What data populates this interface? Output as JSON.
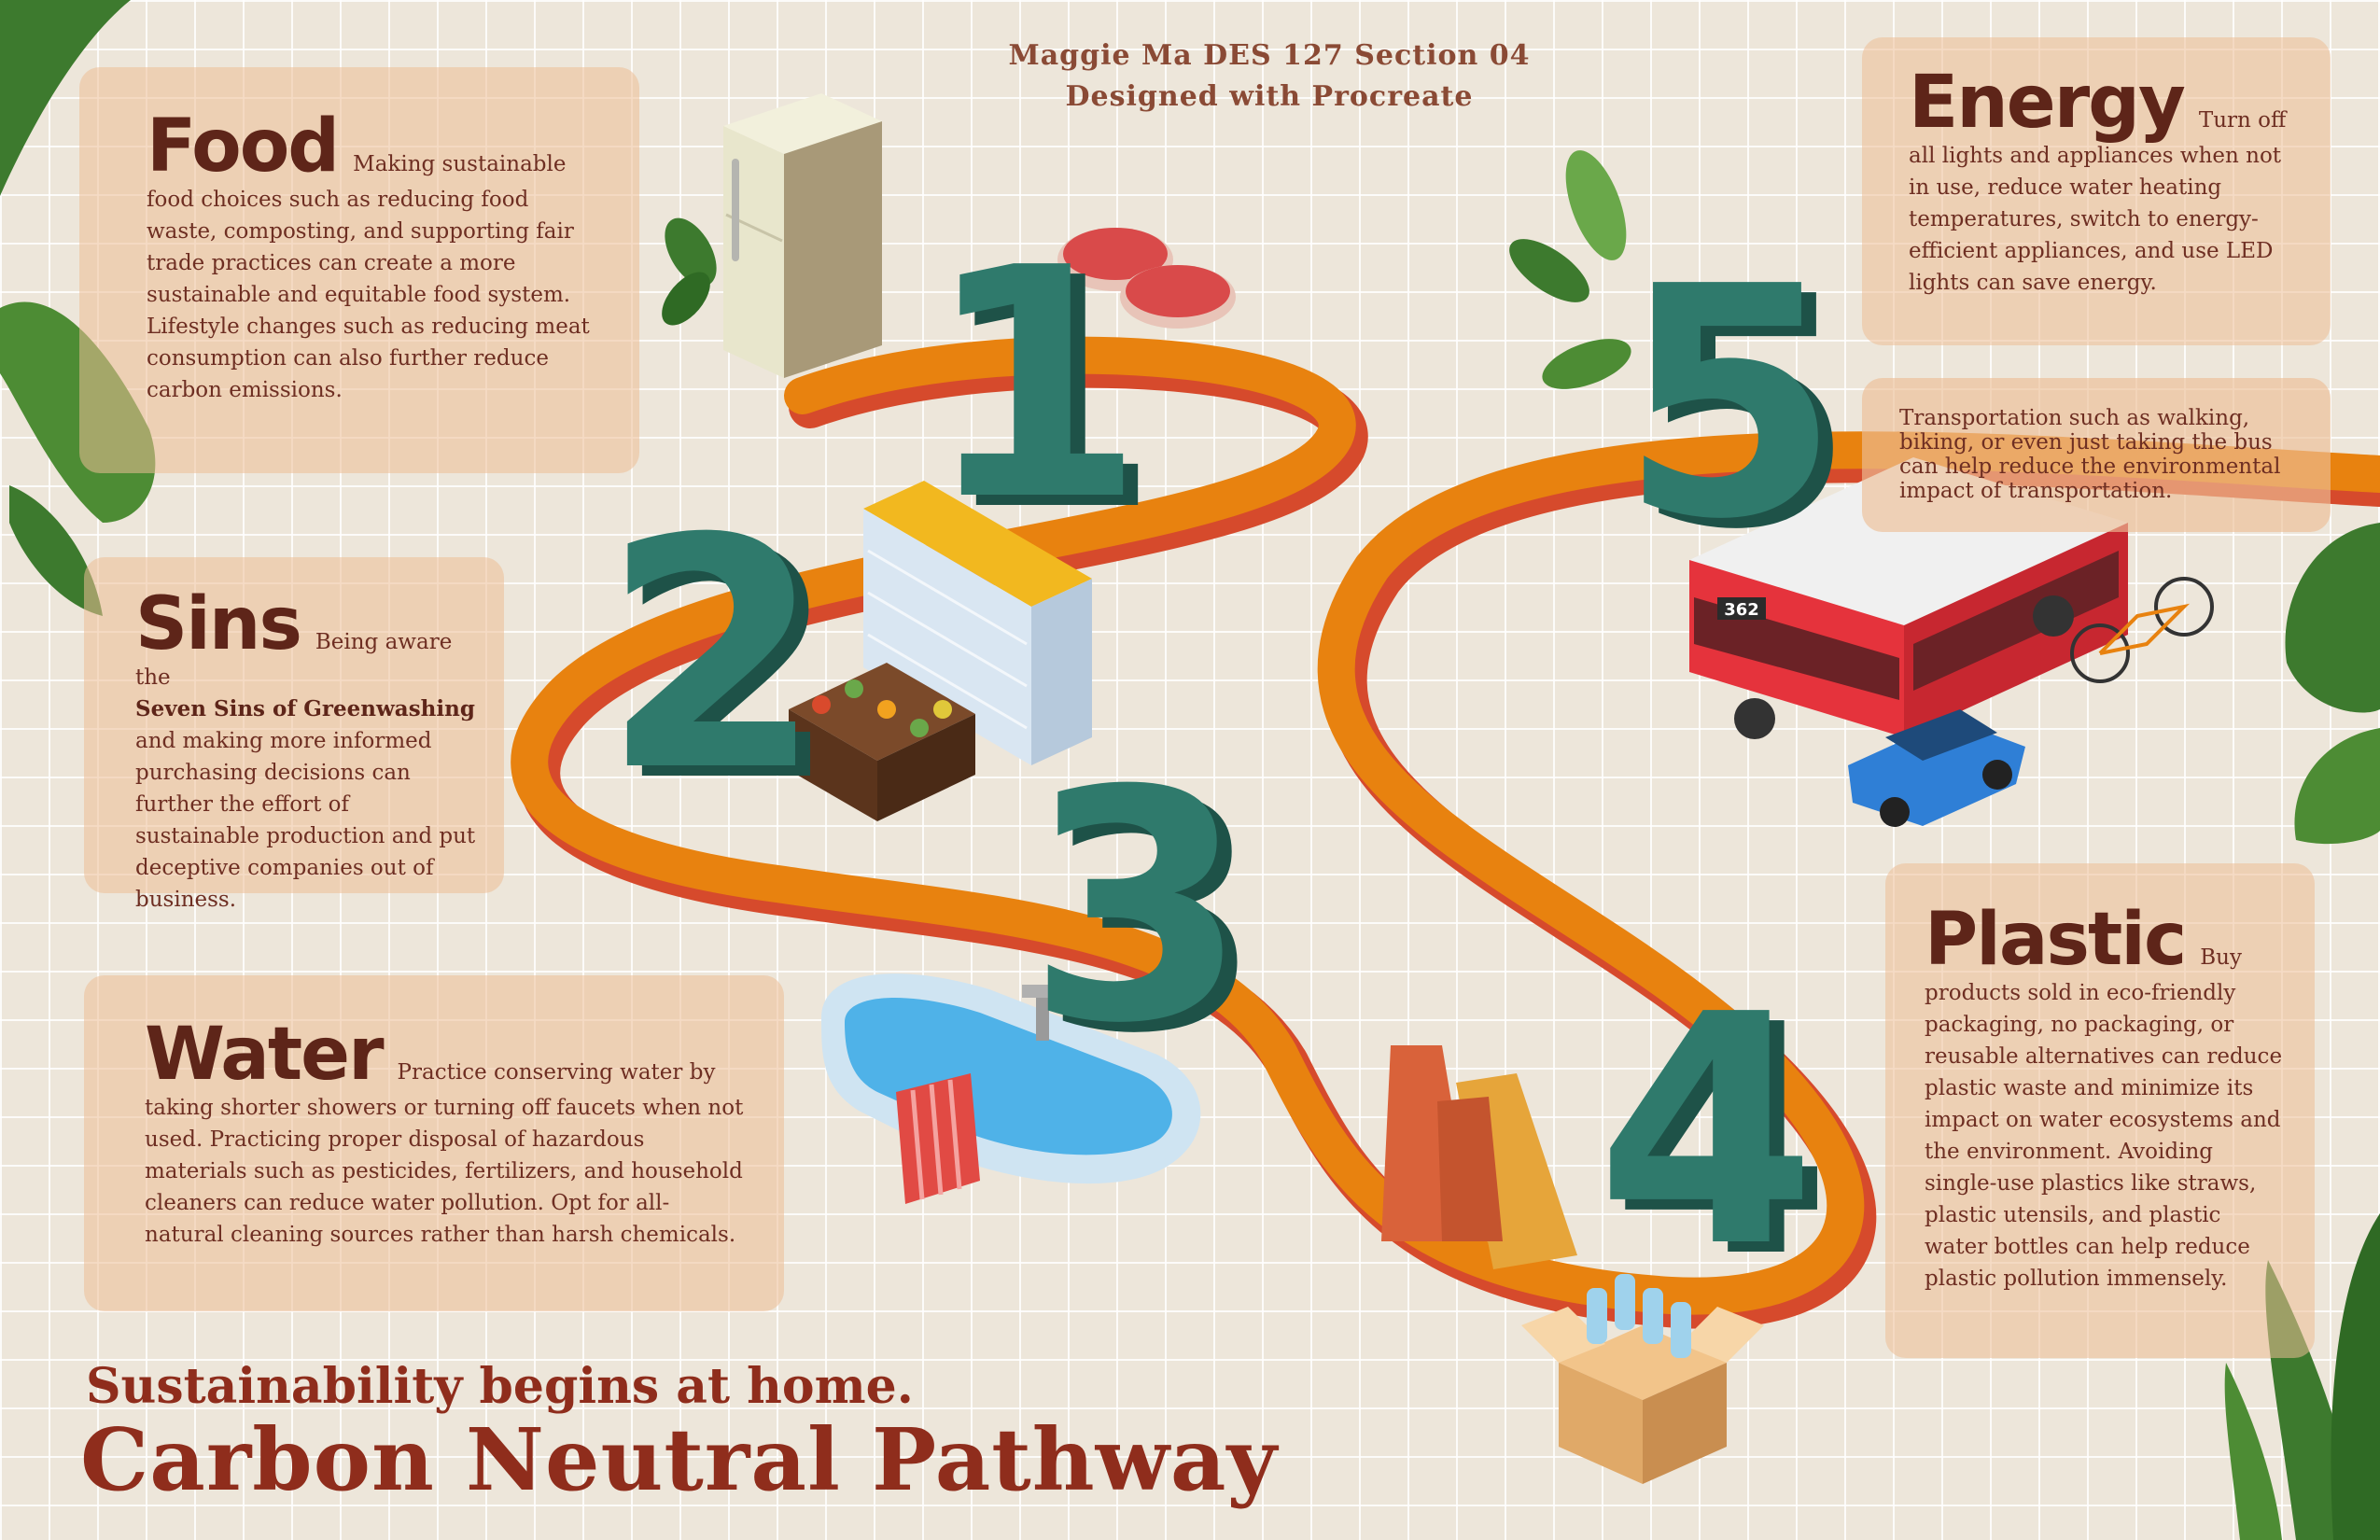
{
  "credit": {
    "line1": "Maggie Ma DES 127 Section 04",
    "line2": "Designed with Procreate"
  },
  "cards": {
    "food": {
      "heading": "Food",
      "body": "Making sustainable food choices such as reducing food waste, composting, and supporting fair trade practices can create a more sustainable and equitable food system. Lifestyle changes such as reducing meat consumption can also further reduce carbon emissions."
    },
    "sins": {
      "heading": "Sins",
      "intro": "Being aware the",
      "emphasis": "Seven Sins of Greenwashing",
      "body": "and making more informed purchasing decisions can further the effort of sustainable production and put deceptive companies out of business."
    },
    "water": {
      "heading": "Water",
      "body": "Practice conserving water by taking shorter showers or turning off faucets when not used. Practicing proper disposal of hazardous materials such as pesticides, fertilizers, and household cleaners can reduce water pollution. Opt for all-natural cleaning sources rather than harsh chemicals."
    },
    "energy": {
      "heading": "Energy",
      "body": "Turn off all lights and appliances when not in use, reduce water heating temperatures, switch to energy-efficient appliances, and use LED lights can save energy."
    },
    "transport": {
      "body": "Transportation such as walking, biking, or even just taking the bus can help reduce the environmental impact of transportation."
    },
    "plastic": {
      "heading": "Plastic",
      "body": "Buy products sold in eco-friendly packaging, no packaging, or reusable alternatives can reduce plastic waste and minimize its impact on water ecosystems and the environment. Avoiding single-use plastics like straws, plastic utensils, and plastic water bottles can help reduce plastic pollution immensely."
    }
  },
  "steps": [
    "1",
    "2",
    "3",
    "4",
    "5"
  ],
  "bus_number": "362",
  "tagline": "Sustainability begins at home.",
  "title": "Carbon Neutral Pathway",
  "colors": {
    "background": "#ede6da",
    "card": "#ecbe96",
    "heading_text": "#5e2519",
    "title_text": "#8f2d1c",
    "path_orange": "#e8820f",
    "path_red": "#d64a2c",
    "numeral_face": "#2f7a6c",
    "numeral_side": "#1e5248",
    "bus_red": "#e5333c",
    "car_blue": "#2f7fd6",
    "leaf_green": "#3d7a2e"
  }
}
